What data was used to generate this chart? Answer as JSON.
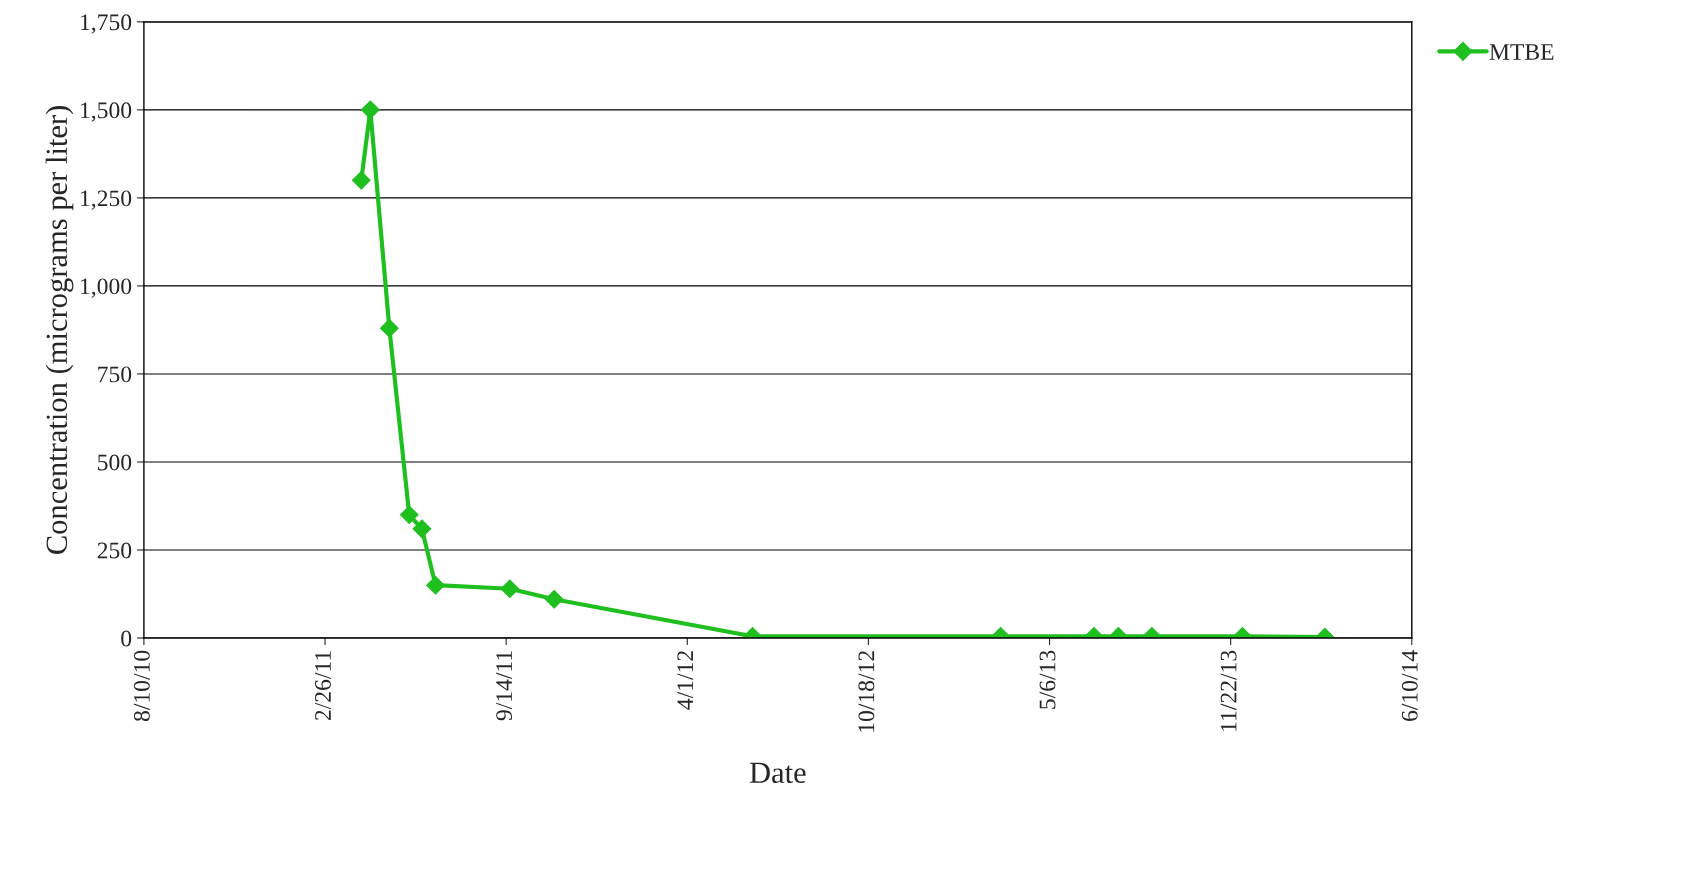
{
  "chart_data": {
    "type": "line",
    "xlabel": "Date",
    "ylabel": "Concentration (micrograms per liter)",
    "x": [
      "2011-04-07",
      "2011-04-17",
      "2011-05-08",
      "2011-05-30",
      "2011-06-13",
      "2011-06-28",
      "2011-09-18",
      "2011-11-06",
      "2012-06-12",
      "2013-03-13",
      "2013-06-24",
      "2013-07-21",
      "2013-08-27",
      "2013-12-05",
      "2014-03-06"
    ],
    "series": [
      {
        "name": "MTBE",
        "color": "#1fbf1f",
        "values": [
          1300,
          1500,
          880,
          350,
          310,
          150,
          140,
          110,
          5,
          5,
          5,
          5,
          5,
          5,
          3
        ]
      }
    ],
    "xlim": [
      "2010-08-10",
      "2014-06-10"
    ],
    "xticks": [
      {
        "value": "2010-08-10",
        "label": "8/10/10"
      },
      {
        "value": "2011-02-26",
        "label": "2/26/11"
      },
      {
        "value": "2011-09-14",
        "label": "9/14/11"
      },
      {
        "value": "2012-04-01",
        "label": "4/1/12"
      },
      {
        "value": "2012-10-18",
        "label": "10/18/12"
      },
      {
        "value": "2013-05-06",
        "label": "5/6/13"
      },
      {
        "value": "2013-11-22",
        "label": "11/22/13"
      },
      {
        "value": "2014-06-10",
        "label": "6/10/14"
      }
    ],
    "ylim": [
      0,
      1750
    ],
    "yticks": [
      {
        "value": 0,
        "label": "0"
      },
      {
        "value": 250,
        "label": "250"
      },
      {
        "value": 500,
        "label": "500"
      },
      {
        "value": 750,
        "label": "750"
      },
      {
        "value": 1000,
        "label": "1,000"
      },
      {
        "value": 1250,
        "label": "1,250"
      },
      {
        "value": 1500,
        "label": "1,500"
      },
      {
        "value": 1750,
        "label": "1,750"
      }
    ],
    "grid": "y",
    "legend": "top right",
    "marker": "diamond",
    "line_style": "solid"
  }
}
